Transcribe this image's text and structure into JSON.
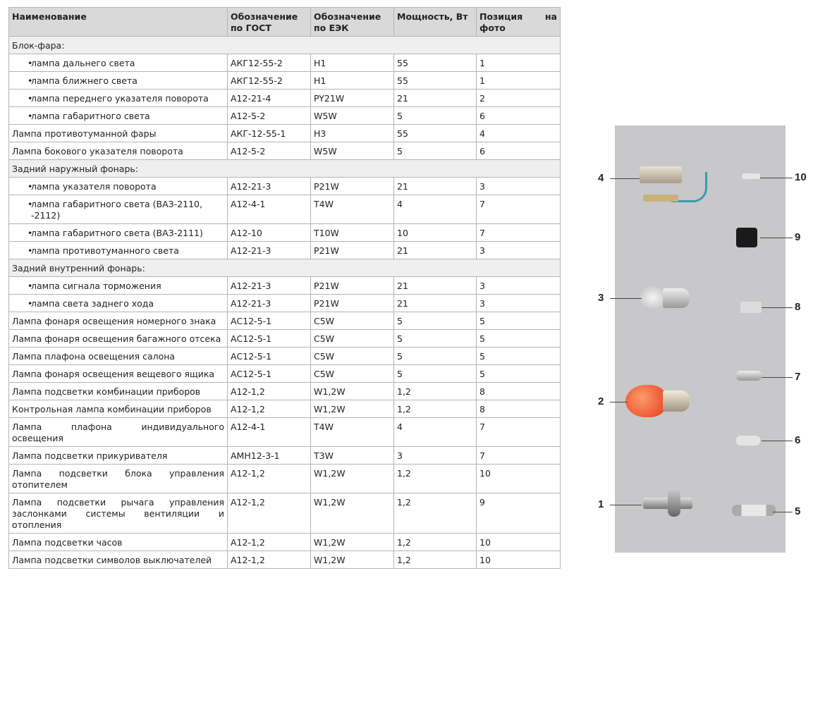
{
  "table": {
    "headers": [
      "Наименование",
      "Обозначение по ГОСТ",
      "Обозначение по ЕЭК",
      "Мощность, Вт",
      "Позиция на фото"
    ],
    "rows": [
      {
        "type": "section",
        "name": "Блок-фара:"
      },
      {
        "type": "bullet",
        "name": "лампа дальнего света",
        "gost": "АКГ12-55-2",
        "eek": "H1",
        "power": "55",
        "pos": "1"
      },
      {
        "type": "bullet",
        "name": "лампа ближнего света",
        "gost": "АКГ12-55-2",
        "eek": "H1",
        "power": "55",
        "pos": "1"
      },
      {
        "type": "bullet",
        "name": "лампа переднего указателя поворота",
        "gost": "А12-21-4",
        "eek": "PY21W",
        "power": "21",
        "pos": "2"
      },
      {
        "type": "bullet",
        "name": "лампа габаритного света",
        "gost": "А12-5-2",
        "eek": "W5W",
        "power": "5",
        "pos": "6"
      },
      {
        "type": "normal",
        "name": "Лампа противотуманной фары",
        "gost": "АКГ-12-55-1",
        "eek": "H3",
        "power": "55",
        "pos": "4"
      },
      {
        "type": "normal",
        "name": "Лампа бокового указателя поворота",
        "gost": "А12-5-2",
        "eek": "W5W",
        "power": "5",
        "pos": "6"
      },
      {
        "type": "section",
        "name": "Задний наружный фонарь:"
      },
      {
        "type": "bullet",
        "name": "лампа указателя поворота",
        "gost": "А12-21-3",
        "eek": "P21W",
        "power": "21",
        "pos": "3"
      },
      {
        "type": "bullet",
        "name": "лампа габаритного света (ВАЗ-2110, -2112)",
        "gost": "А12-4-1",
        "eek": "T4W",
        "power": "4",
        "pos": "7"
      },
      {
        "type": "bullet",
        "name": "лампа габаритного света (ВАЗ-2111)",
        "gost": "А12-10",
        "eek": "T10W",
        "power": "10",
        "pos": "7"
      },
      {
        "type": "bullet",
        "name": "лампа противотуманного света",
        "gost": "А12-21-3",
        "eek": "P21W",
        "power": "21",
        "pos": "3"
      },
      {
        "type": "section",
        "name": "Задний внутренний фонарь:"
      },
      {
        "type": "bullet",
        "name": "лампа сигнала торможения",
        "gost": "А12-21-3",
        "eek": "P21W",
        "power": "21",
        "pos": "3"
      },
      {
        "type": "bullet",
        "name": "лампа света заднего хода",
        "gost": "А12-21-3",
        "eek": "P21W",
        "power": "21",
        "pos": "3"
      },
      {
        "type": "normal",
        "name": "Лампа фонаря освещения номерного знака",
        "gost": "АС12-5-1",
        "eek": "C5W",
        "power": "5",
        "pos": "5"
      },
      {
        "type": "normal",
        "name": "Лампа фонаря освещения багажного отсека",
        "gost": "АС12-5-1",
        "eek": "C5W",
        "power": "5",
        "pos": "5"
      },
      {
        "type": "normal",
        "name": "Лампа плафона освещения салона",
        "gost": "АС12-5-1",
        "eek": "C5W",
        "power": "5",
        "pos": "5"
      },
      {
        "type": "normal",
        "name": "Лампа фонаря освещения вещевого ящика",
        "gost": "АС12-5-1",
        "eek": "C5W",
        "power": "5",
        "pos": "5"
      },
      {
        "type": "normal",
        "name": "Лампа подсветки комбинации приборов",
        "gost": "А12-1,2",
        "eek": "W1,2W",
        "power": "1,2",
        "pos": "8"
      },
      {
        "type": "normal",
        "name": "Контрольная лампа комбинации приборов",
        "gost": "А12-1,2",
        "eek": "W1,2W",
        "power": "1,2",
        "pos": "8"
      },
      {
        "type": "normal",
        "name": "Лампа плафона индивидуального освещения",
        "gost": "А12-4-1",
        "eek": "T4W",
        "power": "4",
        "pos": "7"
      },
      {
        "type": "normal",
        "name": "Лампа подсветки прикуривателя",
        "gost": "АМН12-3-1",
        "eek": "T3W",
        "power": "3",
        "pos": "7"
      },
      {
        "type": "normal",
        "name": "Лампа подсветки блока управления отопителем",
        "gost": "А12-1,2",
        "eek": "W1,2W",
        "power": "1,2",
        "pos": "10"
      },
      {
        "type": "normal",
        "name": "Лампа подсветки рычага управления заслонками системы вентиляции и отопления",
        "gost": "А12-1,2",
        "eek": "W1,2W",
        "power": "1,2",
        "pos": "9"
      },
      {
        "type": "normal",
        "name": "Лампа подсветки часов",
        "gost": "А12-1,2",
        "eek": "W1,2W",
        "power": "1,2",
        "pos": "10"
      },
      {
        "type": "normal",
        "name": "Лампа подсветки символов выключателей",
        "gost": "А12-1,2",
        "eek": "W1,2W",
        "power": "1,2",
        "pos": "10"
      }
    ]
  },
  "photo": {
    "background": "#c8c8ca",
    "labels": [
      "1",
      "2",
      "3",
      "4",
      "5",
      "6",
      "7",
      "8",
      "9",
      "10"
    ]
  }
}
